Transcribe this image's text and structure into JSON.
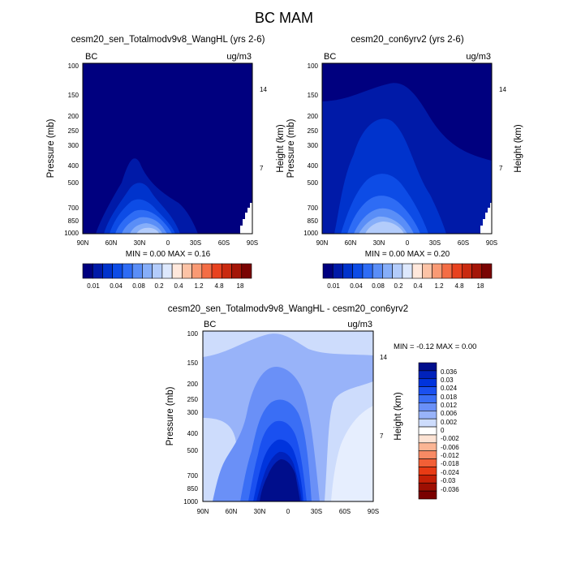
{
  "title": "BC MAM",
  "palettes": {
    "abs": [
      "#00007f",
      "#001aa8",
      "#0033cc",
      "#0d4ce6",
      "#2e6cf5",
      "#5a8ef7",
      "#86aef9",
      "#b3ccfb",
      "#dde8fd",
      "#ffe8dc",
      "#fcc3a6",
      "#f99a74",
      "#f46d45",
      "#e8421f",
      "#c92a10",
      "#a31507",
      "#7a0403"
    ],
    "diff": [
      "#000e8c",
      "#0022bb",
      "#0034dd",
      "#1a50f0",
      "#3a6ef5",
      "#6a90f7",
      "#98b3f9",
      "#cddcfc",
      "#ffffff",
      "#fde3d4",
      "#fbb594",
      "#f88a64",
      "#f25f36",
      "#e83b14",
      "#c52006",
      "#9e0f02",
      "#7a0000"
    ]
  },
  "panels": {
    "left": {
      "title": "cesm20_sen_Totalmodv9v8_WangHL (yrs 2-6)",
      "corner_left": "BC",
      "corner_right": "ug/m3",
      "ylabel": "Pressure (mb)",
      "y2label": "Height (km)",
      "minmax": "MIN =   0.00   MAX =    0.16"
    },
    "right": {
      "title": "cesm20_con6yrv2 (yrs 2-6)",
      "corner_left": "BC",
      "corner_right": "ug/m3",
      "ylabel": "Pressure (mb)",
      "y2label": "Height (km)",
      "minmax": "MIN =   0.00   MAX =    0.20"
    },
    "diff": {
      "title": "cesm20_sen_Totalmodv9v8_WangHL - cesm20_con6yrv2",
      "corner_left": "BC",
      "corner_right": "ug/m3",
      "ylabel": "Pressure (mb)",
      "y2label": "Height (km)",
      "minmax": "MIN =  -0.12   MAX =    0.00"
    }
  },
  "chart_data": [
    {
      "type": "heatmap",
      "title": "cesm20_sen_Totalmodv9v8_WangHL (yrs 2-6)",
      "ylabel": "Pressure (mb)",
      "y2label": "Height (km)",
      "units": "ug/m3",
      "x_ticks": [
        "90N",
        "60N",
        "30N",
        "0",
        "30S",
        "60S",
        "90S"
      ],
      "y_ticks": [
        "100",
        "150",
        "200",
        "250",
        "300",
        "400",
        "500",
        "700",
        "850",
        "1000"
      ],
      "y2_ticks": [
        "14",
        "7"
      ],
      "colorbar_labels": [
        "0.01",
        "0.04",
        "0.08",
        "0.2",
        "0.4",
        "1.2",
        "4.8",
        "18"
      ],
      "min": 0.0,
      "max": 0.16
    },
    {
      "type": "heatmap",
      "title": "cesm20_con6yrv2 (yrs 2-6)",
      "ylabel": "Pressure (mb)",
      "y2label": "Height (km)",
      "units": "ug/m3",
      "x_ticks": [
        "90N",
        "60N",
        "30N",
        "0",
        "30S",
        "60S",
        "90S"
      ],
      "y_ticks": [
        "100",
        "150",
        "200",
        "250",
        "300",
        "400",
        "500",
        "700",
        "850",
        "1000"
      ],
      "y2_ticks": [
        "14",
        "7"
      ],
      "colorbar_labels": [
        "0.01",
        "0.04",
        "0.08",
        "0.2",
        "0.4",
        "1.2",
        "4.8",
        "18"
      ],
      "min": 0.0,
      "max": 0.2
    },
    {
      "type": "heatmap",
      "title": "cesm20_sen_Totalmodv9v8_WangHL - cesm20_con6yrv2",
      "ylabel": "Pressure (mb)",
      "y2label": "Height (km)",
      "units": "ug/m3",
      "x_ticks": [
        "90N",
        "60N",
        "30N",
        "0",
        "30S",
        "60S",
        "90S"
      ],
      "y_ticks": [
        "100",
        "150",
        "200",
        "250",
        "300",
        "400",
        "500",
        "700",
        "850",
        "1000"
      ],
      "y2_ticks": [
        "14",
        "7"
      ],
      "colorbar_labels": [
        "0.036",
        "0.03",
        "0.024",
        "0.018",
        "0.012",
        "0.006",
        "0.002",
        "0",
        "-0.002",
        "-0.006",
        "-0.012",
        "-0.018",
        "-0.024",
        "-0.03",
        "-0.036"
      ],
      "min": -0.12,
      "max": 0.0
    }
  ]
}
